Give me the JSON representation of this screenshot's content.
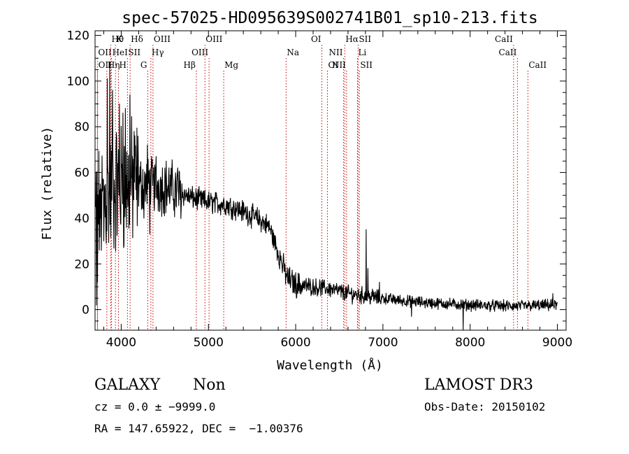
{
  "chart_data": {
    "type": "line",
    "title": "spec-57025-HD095639S002741B01_sp10-213.fits",
    "xlabel": "Wavelength (Å)",
    "ylabel": "Flux (relative)",
    "xlim": [
      3700,
      9100
    ],
    "ylim": [
      -9,
      122
    ],
    "xticks": [
      4000,
      5000,
      6000,
      7000,
      8000,
      9000
    ],
    "yticks": [
      0,
      20,
      40,
      60,
      80,
      100,
      120
    ],
    "series": [
      {
        "name": "flux",
        "continuum": [
          [
            3700,
            42
          ],
          [
            3850,
            50
          ],
          [
            4000,
            54
          ],
          [
            4200,
            55
          ],
          [
            4500,
            54
          ],
          [
            4800,
            49
          ],
          [
            5000,
            47
          ],
          [
            5200,
            46
          ],
          [
            5400,
            43
          ],
          [
            5600,
            39
          ],
          [
            5700,
            36
          ],
          [
            5800,
            25
          ],
          [
            5900,
            14
          ],
          [
            6000,
            11
          ],
          [
            6200,
            10
          ],
          [
            6400,
            9
          ],
          [
            6600,
            7
          ],
          [
            6800,
            6
          ],
          [
            7000,
            5
          ],
          [
            7200,
            4
          ],
          [
            7500,
            3
          ],
          [
            8000,
            2
          ],
          [
            8500,
            1.5
          ],
          [
            9000,
            2
          ]
        ],
        "spikes": [
          [
            3715,
            2
          ],
          [
            3730,
            12
          ],
          [
            3760,
            55
          ],
          [
            3800,
            30
          ],
          [
            3840,
            101
          ],
          [
            3870,
            108
          ],
          [
            3900,
            96
          ],
          [
            3950,
            75
          ],
          [
            3980,
            90
          ],
          [
            4020,
            86
          ],
          [
            4050,
            88
          ],
          [
            4100,
            94
          ],
          [
            4150,
            78
          ],
          [
            4260,
            40
          ],
          [
            4300,
            72
          ],
          [
            4330,
            33
          ],
          [
            4400,
            67
          ],
          [
            4500,
            62
          ],
          [
            4650,
            62
          ],
          [
            6810,
            35
          ],
          [
            6830,
            18
          ],
          [
            6960,
            12
          ],
          [
            7330,
            -3
          ],
          [
            7920,
            -9
          ],
          [
            8950,
            7
          ]
        ]
      }
    ],
    "lines": [
      {
        "name": "Hθ",
        "x": 3880,
        "row": 0,
        "pos": "r"
      },
      {
        "name": "K",
        "x": 3934,
        "row": 0,
        "pos": "r"
      },
      {
        "name": "Hδ",
        "x": 4102,
        "row": 0,
        "pos": "r"
      },
      {
        "name": "OIII",
        "x": 4364,
        "row": 0,
        "pos": "r"
      },
      {
        "name": "OIII",
        "x": 4960,
        "row": 0,
        "pos": "r"
      },
      {
        "name": "OI",
        "x": 6300,
        "row": 0,
        "pos": "l"
      },
      {
        "name": "Hα",
        "x": 6563,
        "row": 0,
        "pos": "r"
      },
      {
        "name": "SII",
        "x": 6716,
        "row": 0,
        "pos": "r"
      },
      {
        "name": "CaII",
        "x": 8498,
        "row": 0,
        "pos": "l"
      },
      {
        "name": "OII",
        "x": 3727,
        "row": 1,
        "pos": "r"
      },
      {
        "name": "HeI",
        "x": 3889,
        "row": 1,
        "pos": "r"
      },
      {
        "name": "SII",
        "x": 4072,
        "row": 1,
        "pos": "r"
      },
      {
        "name": "Hγ",
        "x": 4340,
        "row": 1,
        "pos": "r"
      },
      {
        "name": "OIII",
        "x": 5007,
        "row": 1,
        "pos": "l"
      },
      {
        "name": "Na",
        "x": 5890,
        "row": 1,
        "pos": "r"
      },
      {
        "name": "NII",
        "x": 6548,
        "row": 1,
        "pos": "l"
      },
      {
        "name": "Li",
        "x": 6708,
        "row": 1,
        "pos": "r"
      },
      {
        "name": "CaII",
        "x": 8542,
        "row": 1,
        "pos": "l"
      },
      {
        "name": "OII",
        "x": 3729,
        "row": 2,
        "pos": "r"
      },
      {
        "name": "Hη",
        "x": 3835,
        "row": 2,
        "pos": "r"
      },
      {
        "name": "H",
        "x": 3968,
        "row": 2,
        "pos": "r"
      },
      {
        "name": "G",
        "x": 4305,
        "row": 2,
        "pos": "l"
      },
      {
        "name": "Hβ",
        "x": 4861,
        "row": 2,
        "pos": "l"
      },
      {
        "name": "Mg",
        "x": 5175,
        "row": 2,
        "pos": "r"
      },
      {
        "name": "OI",
        "x": 6364,
        "row": 2,
        "pos": "r"
      },
      {
        "name": "NII",
        "x": 6584,
        "row": 2,
        "pos": "l"
      },
      {
        "name": "SII",
        "x": 6731,
        "row": 2,
        "pos": "r"
      },
      {
        "name": "CaII",
        "x": 8662,
        "row": 2,
        "pos": "r"
      }
    ]
  },
  "info": {
    "object_class": "GALAXY",
    "subclass": "Non",
    "survey": "LAMOST DR3",
    "cz_line": "cz = 0.0 ± −9999.0",
    "obs_date": "Obs-Date: 20150102",
    "radec": "RA = 147.65922, DEC =  −1.00376"
  }
}
